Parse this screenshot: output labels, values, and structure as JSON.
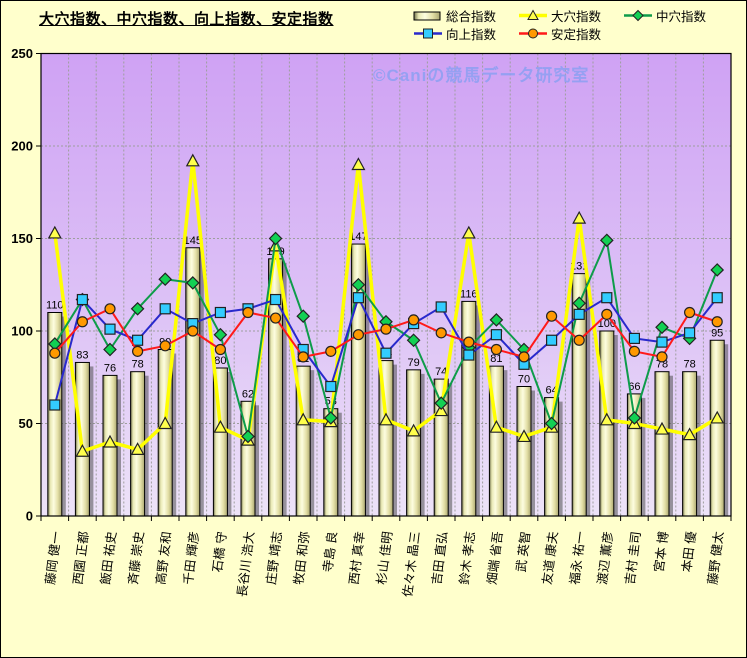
{
  "title": "大穴指数、中穴指数、向上指数、安定指数",
  "watermark": "©Caniの競馬データ研究室",
  "y_axis": {
    "ticks": [
      "0",
      "50",
      "100",
      "150",
      "200",
      "250"
    ],
    "min": 0,
    "max": 250
  },
  "legend": {
    "position": "top-right",
    "rows": [
      [
        "総合指数",
        "大穴指数",
        "中穴指数"
      ],
      [
        "向上指数",
        "安定指数"
      ]
    ]
  },
  "colors": {
    "page_background": "#FFFFCC",
    "plot_gradient_top": "#CFA2F4",
    "plot_gradient_bottom": "#EDE3F8",
    "gridline": "#9E9E9E",
    "bar_edge": "#000000",
    "bar_shadow": "#505050",
    "ooana_line": "#FFFF00",
    "ooana_marker": "#FFFF4D",
    "chuuana_line": "#0E9C4A",
    "chuuana_marker": "#12D053",
    "koujou_line": "#2929CC",
    "koujou_marker": "#33CCFF",
    "antei_line": "#FF1A1A",
    "antei_marker": "#FF9900",
    "watermark": "#8CA0F2"
  },
  "chart_data": {
    "type": "bar",
    "subtype": "combo-bar-and-lines",
    "title": "大穴指数、中穴指数、向上指数、安定指数",
    "xlabel": "",
    "ylabel": "",
    "ylim": [
      0,
      250
    ],
    "ytick_step": 50,
    "grid": true,
    "legend_position": "top-right",
    "categories": [
      "藤岡 健一",
      "西園 正都",
      "飯田 祐史",
      "斉藤 崇史",
      "高野 友和",
      "千田 輝彦",
      "石橋 守",
      "長谷川 浩大",
      "庄野 靖志",
      "牧田 和弥",
      "寺島 良",
      "西村 真幸",
      "杉山 佳明",
      "佐々木 晶三",
      "吉田 直弘",
      "鈴木 孝志",
      "畑端 省吾",
      "武 英智",
      "友道 康夫",
      "福永 祐一",
      "渡辺 薫彦",
      "吉村 圭司",
      "宮本 博",
      "本田 優",
      "藤野 健太"
    ],
    "series": [
      {
        "name": "総合指数",
        "type": "bar",
        "marker": "none",
        "values": [
          110,
          83,
          76,
          78,
          90,
          145,
          80,
          62,
          139,
          81,
          58,
          147,
          84,
          79,
          74,
          116,
          81,
          70,
          64,
          131,
          100,
          66,
          78,
          78,
          95
        ],
        "labels_shown": true
      },
      {
        "name": "大穴指数",
        "type": "line",
        "marker": "triangle",
        "line_color": "#FFFF00",
        "marker_color": "#FFFF4D",
        "values": [
          153,
          35,
          40,
          36,
          50,
          192,
          48,
          41,
          146,
          52,
          51,
          190,
          52,
          46,
          57,
          153,
          48,
          43,
          48,
          161,
          52,
          50,
          47,
          44,
          53
        ]
      },
      {
        "name": "中穴指数",
        "type": "line",
        "marker": "diamond",
        "line_color": "#0E9C4A",
        "marker_color": "#12D053",
        "values": [
          93,
          117,
          90,
          112,
          128,
          126,
          98,
          43,
          150,
          108,
          53,
          125,
          105,
          95,
          61,
          91,
          106,
          90,
          50,
          115,
          149,
          53,
          102,
          96,
          133
        ]
      },
      {
        "name": "向上指数",
        "type": "line",
        "marker": "square",
        "line_color": "#2929CC",
        "marker_color": "#33CCFF",
        "values": [
          60,
          117,
          101,
          95,
          112,
          104,
          110,
          112,
          117,
          90,
          70,
          118,
          88,
          104,
          113,
          87,
          98,
          82,
          95,
          109,
          118,
          96,
          94,
          99,
          118
        ]
      },
      {
        "name": "安定指数",
        "type": "line",
        "marker": "circle",
        "line_color": "#FF1A1A",
        "marker_color": "#FF9900",
        "values": [
          88,
          105,
          112,
          89,
          92,
          100,
          90,
          110,
          107,
          86,
          89,
          98,
          101,
          106,
          99,
          94,
          90,
          86,
          108,
          95,
          109,
          89,
          86,
          110,
          105
        ]
      }
    ]
  }
}
